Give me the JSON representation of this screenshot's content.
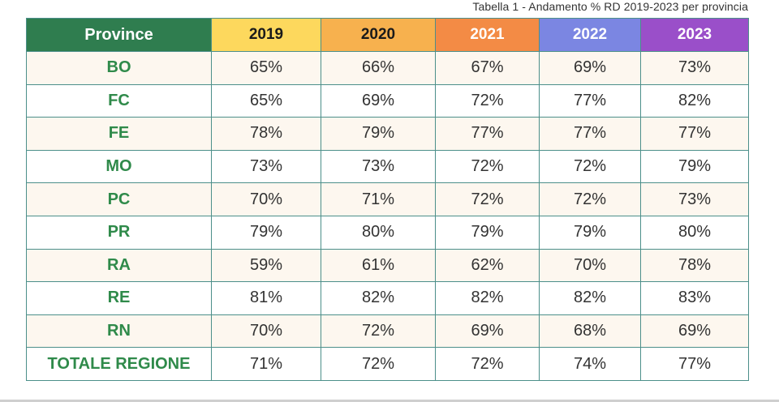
{
  "caption": "Tabella 1 -  Andamento % RD 2019-2023 per provincia",
  "header": {
    "province": "Province",
    "years": [
      "2019",
      "2020",
      "2021",
      "2022",
      "2023"
    ]
  },
  "rows": [
    {
      "province": "BO",
      "values": [
        "65%",
        "66%",
        "67%",
        "69%",
        "73%"
      ]
    },
    {
      "province": "FC",
      "values": [
        "65%",
        "69%",
        "72%",
        "77%",
        "82%"
      ]
    },
    {
      "province": "FE",
      "values": [
        "78%",
        "79%",
        "77%",
        "77%",
        "77%"
      ]
    },
    {
      "province": "MO",
      "values": [
        "73%",
        "73%",
        "72%",
        "72%",
        "79%"
      ]
    },
    {
      "province": "PC",
      "values": [
        "70%",
        "71%",
        "72%",
        "72%",
        "73%"
      ]
    },
    {
      "province": "PR",
      "values": [
        "79%",
        "80%",
        "79%",
        "79%",
        "80%"
      ]
    },
    {
      "province": "RA",
      "values": [
        "59%",
        "61%",
        "62%",
        "70%",
        "78%"
      ]
    },
    {
      "province": "RE",
      "values": [
        "81%",
        "82%",
        "82%",
        "82%",
        "83%"
      ]
    },
    {
      "province": "RN",
      "values": [
        "70%",
        "72%",
        "69%",
        "68%",
        "69%"
      ]
    },
    {
      "province": "TOTALE REGIONE",
      "values": [
        "71%",
        "72%",
        "72%",
        "74%",
        "77%"
      ]
    }
  ],
  "colors": {
    "header_province": "#2f7d4f",
    "header_2019": "#fdd85d",
    "header_2020": "#f7b14e",
    "header_2021": "#f38b45",
    "header_2022": "#7b86e2",
    "header_2023": "#9a4fc9",
    "province_text": "#2f8a4a",
    "row_stripe": "#fdf7ef"
  }
}
